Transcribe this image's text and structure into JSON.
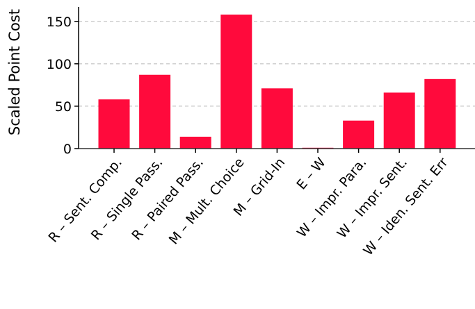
{
  "chart_data": {
    "type": "bar",
    "ylabel": "Scaled Point Cost",
    "categories": [
      "R – Sent. Comp.",
      "R – Single Pass.",
      "R – Paired Pass.",
      "M – Mult. Choice",
      "M – Grid-In",
      "E – W",
      "W – Impr. Para.",
      "W – Impr. Sent.",
      "W – Iden. Sent. Err"
    ],
    "values": [
      58,
      87,
      14,
      158,
      71,
      1,
      33,
      66,
      82
    ],
    "ylim": [
      0,
      167
    ],
    "yticks": [
      0,
      50,
      100,
      150
    ],
    "grid": true,
    "bar_color": "#ff0a3c",
    "grid_color": "#b8b8b8"
  }
}
